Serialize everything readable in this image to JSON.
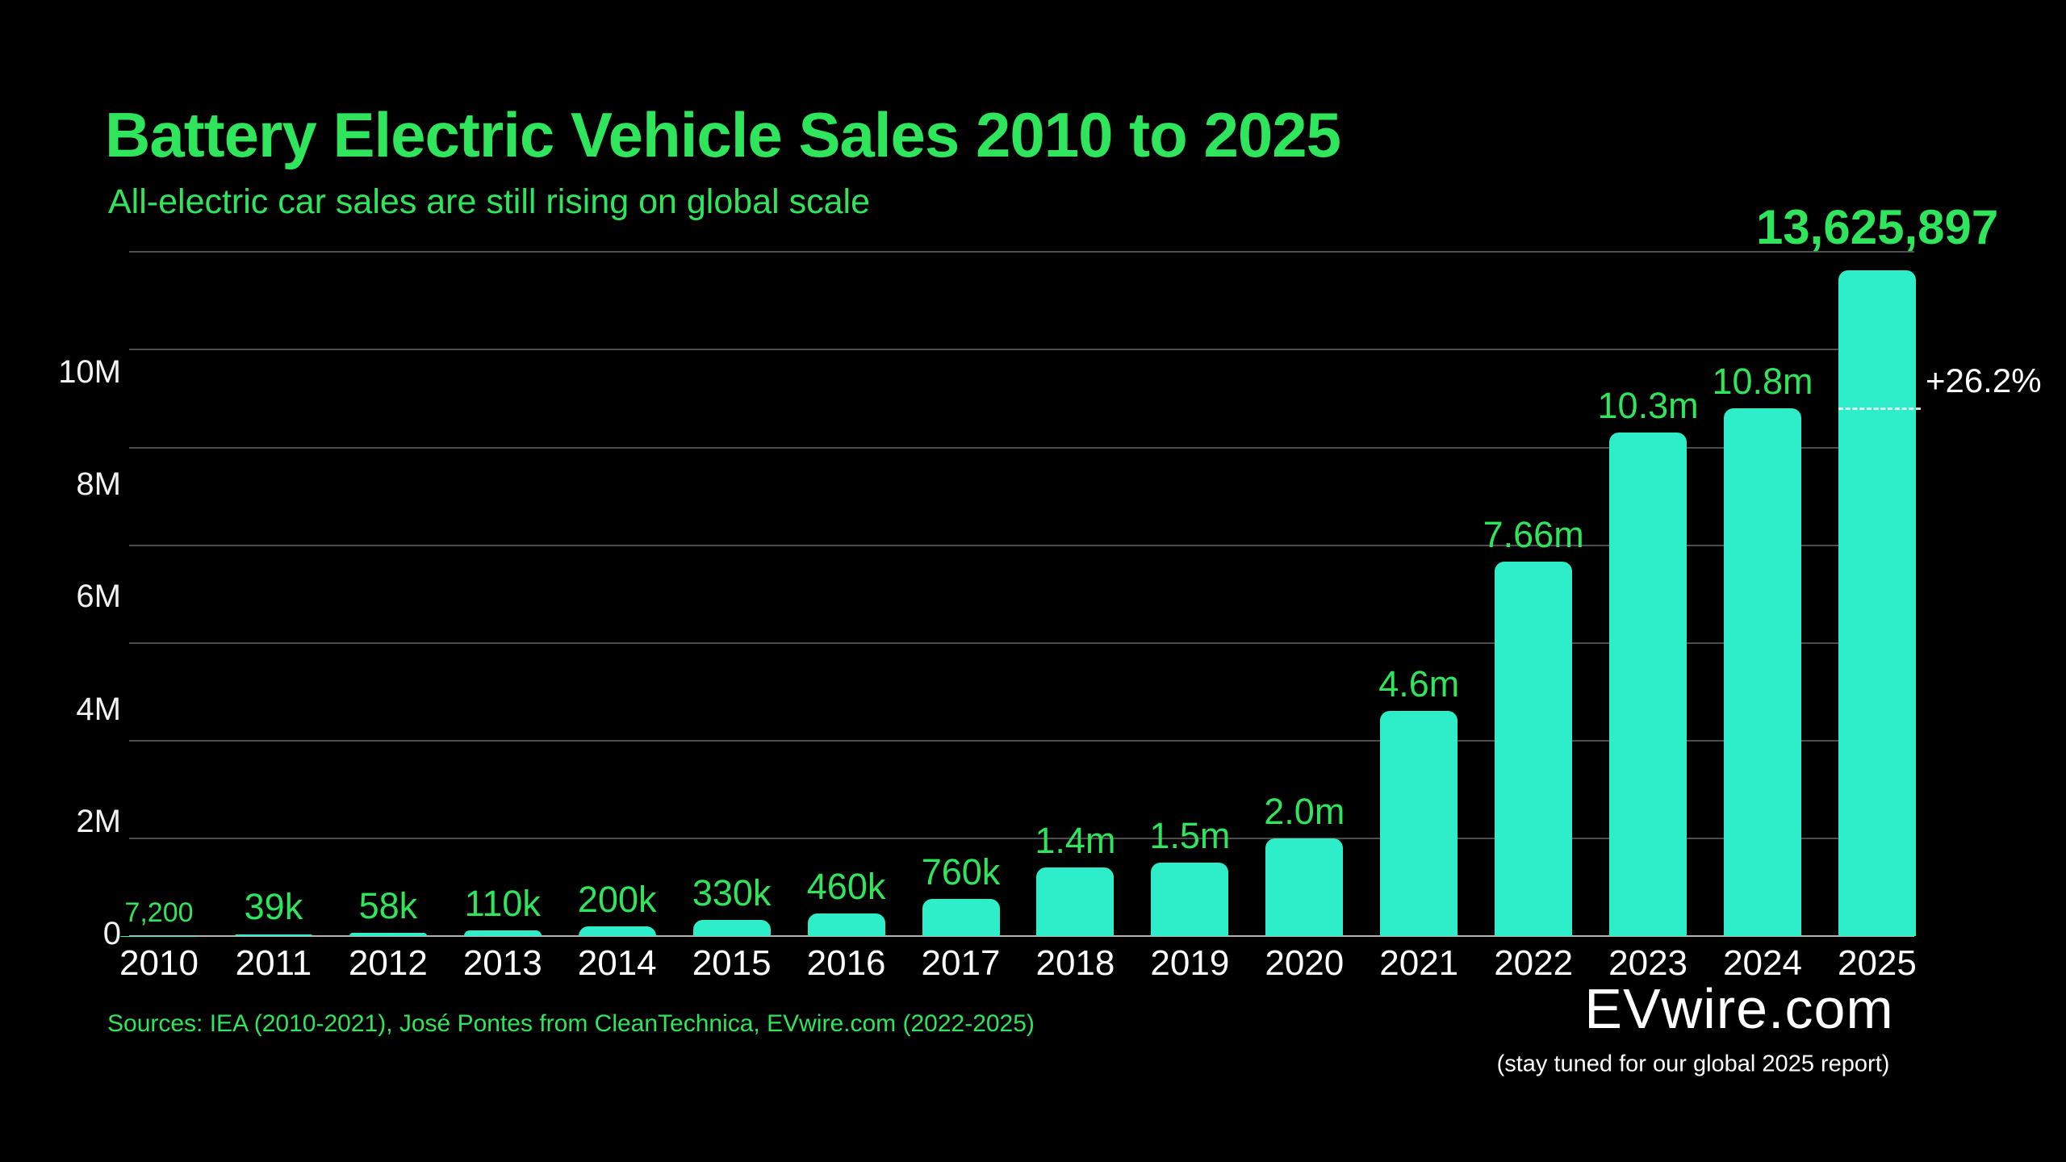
{
  "header": {
    "title": "Battery Electric Vehicle Sales 2010 to 2025",
    "subtitle": "All-electric car sales are still rising on global scale"
  },
  "chart_data": {
    "type": "bar",
    "title": "Battery Electric Vehicle Sales 2010 to 2025",
    "subtitle": "All-electric car sales are still rising on global scale",
    "categories": [
      "2010",
      "2011",
      "2012",
      "2013",
      "2014",
      "2015",
      "2016",
      "2017",
      "2018",
      "2019",
      "2020",
      "2021",
      "2022",
      "2023",
      "2024",
      "2025"
    ],
    "values": [
      7200,
      39000,
      58000,
      110000,
      200000,
      330000,
      460000,
      760000,
      1400000,
      1500000,
      2000000,
      4600000,
      7660000,
      10300000,
      10800000,
      13625897
    ],
    "bar_labels": [
      "7,200",
      "39k",
      "58k",
      "110k",
      "200k",
      "330k",
      "460k",
      "760k",
      "1.4m",
      "1.5m",
      "2.0m",
      "4.6m",
      "7.66m",
      "10.3m",
      "10.8m",
      "13,625,897"
    ],
    "y_ticks": [
      "10M",
      "8M",
      "6M",
      "4M",
      "2M",
      "0"
    ],
    "ylim": [
      0,
      14000000
    ],
    "gridline_step": 2000000,
    "grid": true,
    "legend": "none",
    "annotation": {
      "text": "+26.2%",
      "reference_value": 10800000,
      "style": "dashed line at previous-year (2024) level across 2025 bar"
    }
  },
  "footer": {
    "sources": "Sources: IEA (2010-2021), José Pontes from CleanTechnica, EVwire.com (2022-2025)",
    "brand": "EVwire.com",
    "note": "(stay tuned for our global 2025 report)"
  },
  "colors": {
    "background": "#000000",
    "green": "#2EE55C",
    "bar": "#2DEEC8",
    "grid": "#4d4d4d",
    "axis": "#b0b0b0",
    "white": "#ffffff"
  }
}
